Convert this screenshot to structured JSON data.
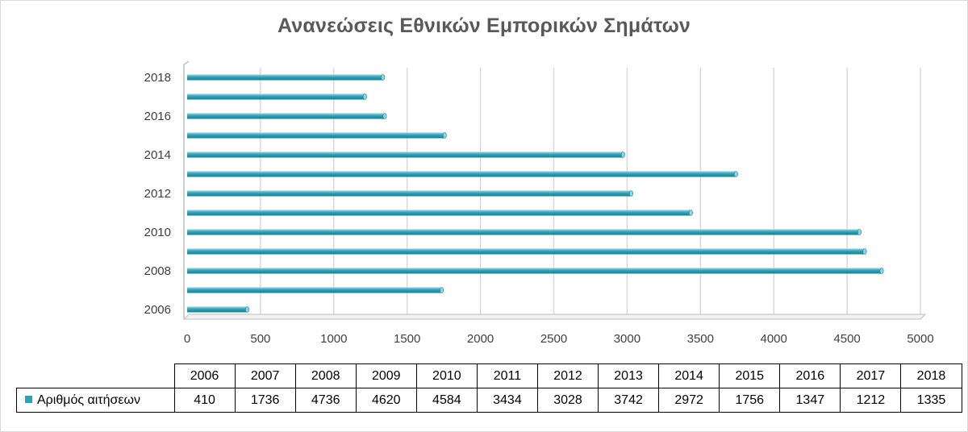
{
  "chart_data": {
    "type": "bar",
    "orientation": "horizontal",
    "title": "Ανανεώσεις Εθνικών Εμπορικών Σημάτων",
    "categories": [
      "2006",
      "2007",
      "2008",
      "2009",
      "2010",
      "2011",
      "2012",
      "2013",
      "2014",
      "2015",
      "2016",
      "2017",
      "2018"
    ],
    "series": [
      {
        "name": "Αριθμός αιτήσεων",
        "values": [
          410,
          1736,
          4736,
          4620,
          4584,
          3434,
          3028,
          3742,
          2972,
          1756,
          1347,
          1212,
          1335
        ]
      }
    ],
    "xlim": [
      0,
      5000
    ],
    "x_ticks": [
      "0",
      "500",
      "1000",
      "1500",
      "2000",
      "2500",
      "3000",
      "3500",
      "4000",
      "4500",
      "5000"
    ],
    "y_tick_labels": [
      "2006",
      "2008",
      "2010",
      "2012",
      "2014",
      "2016",
      "2018"
    ],
    "grid": "vertical",
    "legend": "data-table",
    "colors": {
      "bar": "#2aa3b6",
      "bar_dark": "#1b7d8d",
      "bar_light": "#8ad6e2",
      "grid": "#d9d9d9",
      "axis": "#bfbfbf"
    }
  }
}
